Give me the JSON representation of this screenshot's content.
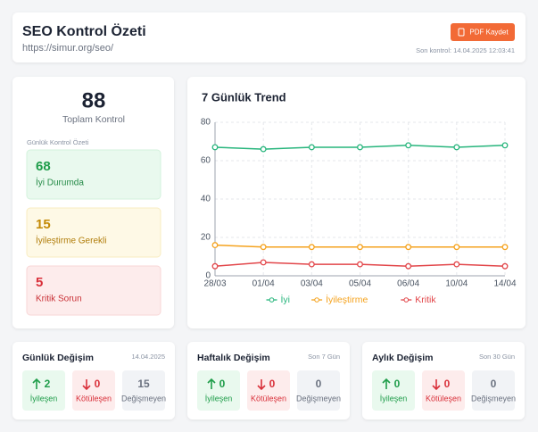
{
  "header": {
    "title": "SEO Kontrol Özeti",
    "url": "https://simur.org/seo/",
    "button": "PDF Kaydet",
    "last_check": "Son kontrol: 14.04.2025 12:03:41"
  },
  "summary": {
    "total": 88,
    "total_label": "Toplam Kontrol",
    "section_label": "Günlük Kontrol Özeti",
    "items": [
      {
        "value": 68,
        "label": "İyi Durumda"
      },
      {
        "value": 15,
        "label": "İyileştirme Gerekli"
      },
      {
        "value": 5,
        "label": "Kritik Sorun"
      }
    ]
  },
  "chart_data": {
    "type": "line",
    "title": "7 Günlük Trend",
    "categories": [
      "28/03",
      "01/04",
      "03/04",
      "05/04",
      "06/04",
      "10/04",
      "14/04"
    ],
    "series": [
      {
        "name": "İyi",
        "color": "#27b57c",
        "values": [
          67,
          66,
          67,
          67,
          68,
          67,
          68
        ]
      },
      {
        "name": "İyileştirme",
        "color": "#f5a31f",
        "values": [
          16,
          15,
          15,
          15,
          15,
          15,
          15
        ]
      },
      {
        "name": "Kritik",
        "color": "#e2464a",
        "values": [
          5,
          7,
          6,
          6,
          5,
          6,
          5
        ]
      }
    ],
    "ylim": [
      0,
      80
    ],
    "yticks": [
      0,
      20,
      40,
      60,
      80
    ],
    "grid": true,
    "legend": "bottom"
  },
  "change_labels": {
    "improved": "İyileşen",
    "worsened": "Kötüleşen",
    "unchanged": "Değişmeyen"
  },
  "changes": [
    {
      "title": "Günlük Değişim",
      "period": "14.04.2025",
      "improved": 2,
      "worsened": 0,
      "unchanged": 15
    },
    {
      "title": "Haftalık Değişim",
      "period": "Son 7 Gün",
      "improved": 0,
      "worsened": 0,
      "unchanged": 0
    },
    {
      "title": "Aylık Değişim",
      "period": "Son 30 Gün",
      "improved": 0,
      "worsened": 0,
      "unchanged": 0
    }
  ]
}
